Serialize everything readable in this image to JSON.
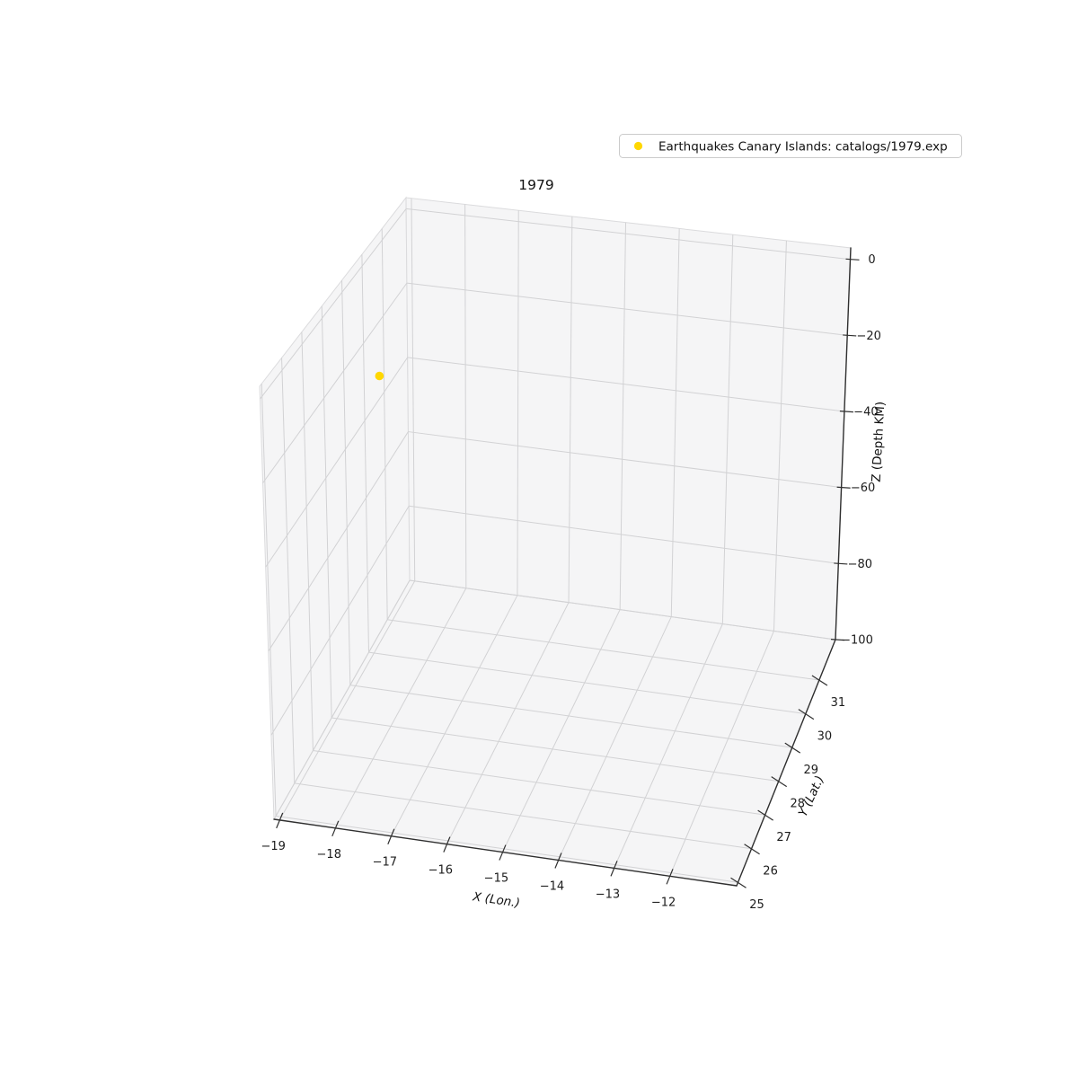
{
  "title": "1979",
  "legend": {
    "label": "Earthquakes Canary Islands: catalogs/1979.exp",
    "marker_color": "#FFD700"
  },
  "colors": {
    "marker": "#FFD700",
    "pane": "#f5f5f6",
    "grid": "#d2d2d4",
    "axis_line": "#2f2f2f",
    "text": "#1c1c1c"
  },
  "chart_data": {
    "type": "scatter",
    "projection": "3d",
    "title": "1979",
    "xlabel": "X (Lon.)",
    "ylabel": "Y (Lat.)",
    "zlabel": "Z (Depth KM)",
    "xlim": [
      -19.1,
      -10.8
    ],
    "ylim": [
      24.9,
      32.2
    ],
    "zlim": [
      -100,
      3
    ],
    "xticks": [
      -19,
      -18,
      -17,
      -16,
      -15,
      -14,
      -13,
      -12
    ],
    "yticks": [
      25,
      26,
      27,
      28,
      29,
      30,
      31
    ],
    "zticks": [
      0,
      -20,
      -40,
      -60,
      -80,
      -100
    ],
    "grid": true,
    "legend_position": "upper right",
    "series": [
      {
        "name": "Earthquakes Canary Islands: catalogs/1979.exp",
        "color": "#FFD700",
        "marker": "circle",
        "points": [
          {
            "x": -18.2,
            "y": 28.3,
            "z": -15
          }
        ]
      }
    ]
  }
}
